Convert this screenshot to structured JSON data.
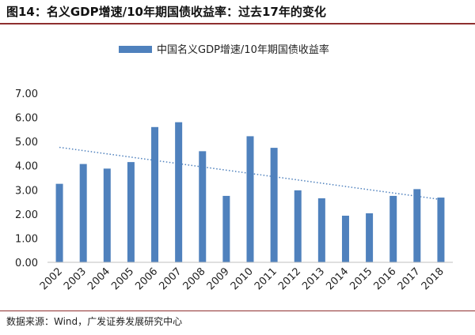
{
  "figure": {
    "title": "图14：名义GDP增速/10年期国债收益率：过去17年的变化",
    "source": "数据来源：Wind，广发证券发展研究中心"
  },
  "chart_data": {
    "type": "bar",
    "categories": [
      "2002",
      "2003",
      "2004",
      "2005",
      "2006",
      "2007",
      "2008",
      "2009",
      "2010",
      "2011",
      "2012",
      "2013",
      "2014",
      "2015",
      "2016",
      "2017",
      "2018"
    ],
    "series": [
      {
        "name": "中国名义GDP增速/10年期国债收益率",
        "values": [
          3.25,
          4.07,
          3.88,
          4.15,
          5.6,
          5.8,
          4.6,
          2.75,
          5.22,
          4.74,
          2.98,
          2.65,
          1.93,
          2.03,
          2.75,
          3.03,
          2.68
        ],
        "color": "#4f81bd"
      }
    ],
    "trendline": {
      "style": "dotted",
      "color": "#4f81bd",
      "start": 4.76,
      "end": 2.6
    },
    "yticks": [
      "0.00",
      "1.00",
      "2.00",
      "3.00",
      "4.00",
      "5.00",
      "6.00",
      "7.00"
    ],
    "ylim": [
      0,
      7
    ],
    "grid": false,
    "legend": "top",
    "xlabel": "",
    "ylabel": ""
  }
}
